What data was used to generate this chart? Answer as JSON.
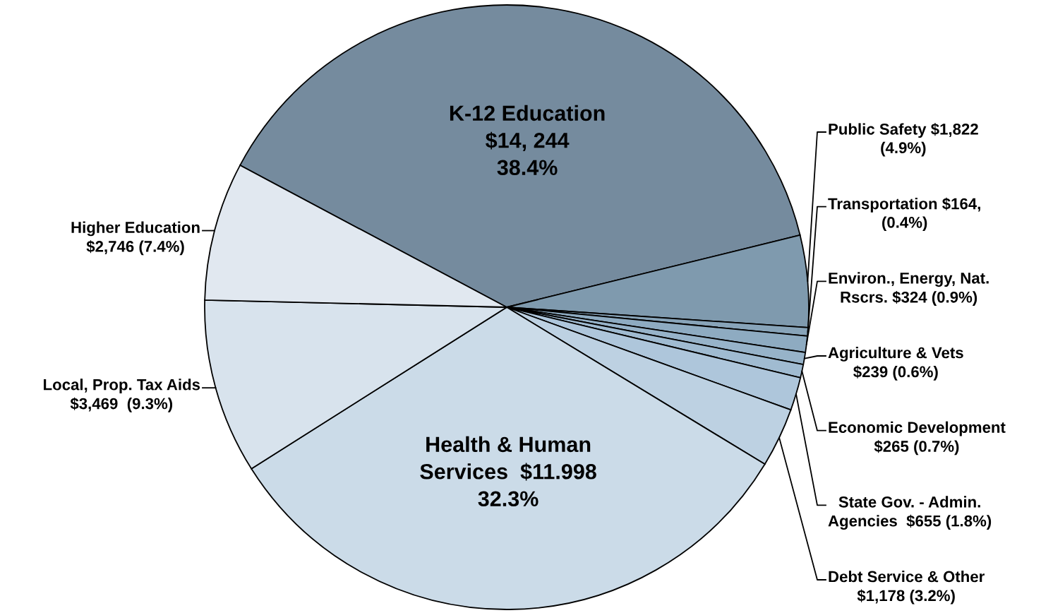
{
  "chart_data": {
    "type": "pie",
    "categories": [
      "K-12 Education\n$14, 244\n38.4%",
      "Public Safety $1,822\n(4.9%)",
      "Transportation $164,\n(0.4%)",
      "Environ., Energy, Nat.\nRscrs. $324 (0.9%)",
      "Agriculture & Vets\n$239 (0.6%)",
      "Economic Development\n$265 (0.7%)",
      "State Gov. - Admin.\nAgencies  $655 (1.8%)",
      "Debt Service & Other\n$1,178 (3.2%)",
      "Health & Human\nServices  $11.998\n32.3%",
      "Local, Prop. Tax Aids\n$3,469  (9.3%)",
      "Higher Education\n$2,746 (7.4%)"
    ],
    "values": [
      14244,
      1822,
      164,
      324,
      239,
      265,
      655,
      1178,
      11998,
      3469,
      2746
    ],
    "colors": [
      "#758b9e",
      "#7f9aae",
      "#88a4b9",
      "#8eabc1",
      "#97b3c9",
      "#a0bbd1",
      "#aec6db",
      "#bdd1e2",
      "#cbdbe8",
      "#d8e3ed",
      "#e1e8f0"
    ]
  }
}
